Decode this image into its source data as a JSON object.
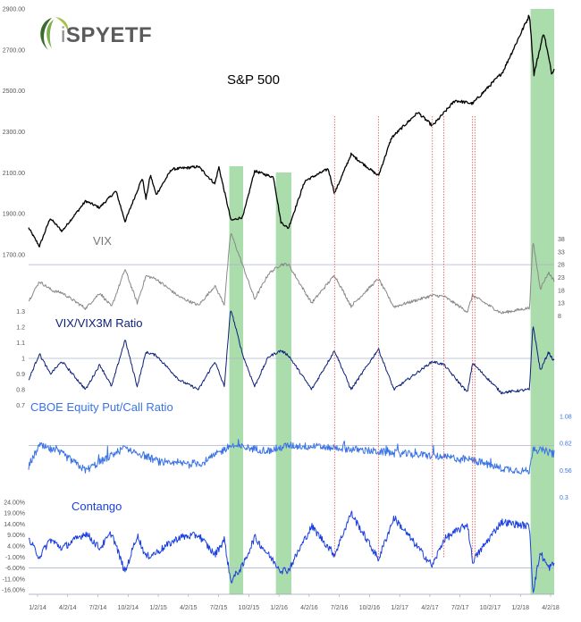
{
  "logo": {
    "prefix": "i",
    "name": "SPYETF"
  },
  "chart_data": {
    "type": "line",
    "x_labels": [
      "1/2/14",
      "4/2/14",
      "7/2/14",
      "10/2/14",
      "1/2/15",
      "4/2/15",
      "7/2/15",
      "10/2/15",
      "1/2/16",
      "4/2/16",
      "7/2/16",
      "10/2/16",
      "1/2/17",
      "4/2/17",
      "7/2/17",
      "10/2/17",
      "1/2/18",
      "4/2/18"
    ],
    "x_range": [
      "2014-01-02",
      "2018-04-09"
    ],
    "correction_periods": [
      {
        "start": "2015-08-20",
        "end": "2015-09-30"
      },
      {
        "start": "2016-01-05",
        "end": "2016-02-20"
      },
      {
        "start": "2018-01-29",
        "end": "2018-04-09"
      }
    ],
    "spike_dates": [
      "2016-06-27",
      "2016-11-04",
      "2017-04-13",
      "2017-05-17",
      "2017-08-10",
      "2017-08-17"
    ],
    "panels": [
      {
        "title": "S&P 500",
        "color": "#000000",
        "ylim": [
          1700,
          2900
        ],
        "ytick_values": [
          1700,
          1900,
          2100,
          2300,
          2500,
          2700,
          2900
        ],
        "ytick_labels": [
          "1700.00",
          "1900.00",
          "2100.00",
          "2300.00",
          "2500.00",
          "2700.00",
          "2900.00"
        ],
        "tick_side": "left",
        "reference_line": null,
        "anchors": [
          [
            "2014-01-02",
            1831
          ],
          [
            "2014-02-03",
            1741
          ],
          [
            "2014-03-07",
            1878
          ],
          [
            "2014-04-11",
            1815
          ],
          [
            "2014-06-20",
            1962
          ],
          [
            "2014-07-31",
            1930
          ],
          [
            "2014-09-18",
            2011
          ],
          [
            "2014-10-15",
            1862
          ],
          [
            "2014-12-05",
            2075
          ],
          [
            "2014-12-16",
            1972
          ],
          [
            "2014-12-29",
            2090
          ],
          [
            "2015-01-15",
            1993
          ],
          [
            "2015-03-02",
            2117
          ],
          [
            "2015-05-21",
            2130
          ],
          [
            "2015-07-08",
            2046
          ],
          [
            "2015-07-20",
            2128
          ],
          [
            "2015-08-25",
            1867
          ],
          [
            "2015-09-29",
            1884
          ],
          [
            "2015-11-03",
            2109
          ],
          [
            "2015-12-29",
            2078
          ],
          [
            "2016-01-20",
            1859
          ],
          [
            "2016-02-11",
            1829
          ],
          [
            "2016-03-31",
            2060
          ],
          [
            "2016-06-08",
            2119
          ],
          [
            "2016-06-27",
            2000
          ],
          [
            "2016-08-15",
            2190
          ],
          [
            "2016-11-04",
            2085
          ],
          [
            "2016-12-13",
            2271
          ],
          [
            "2017-03-01",
            2395
          ],
          [
            "2017-04-13",
            2329
          ],
          [
            "2017-06-19",
            2453
          ],
          [
            "2017-08-10",
            2438
          ],
          [
            "2017-11-07",
            2591
          ],
          [
            "2018-01-26",
            2872
          ],
          [
            "2018-02-08",
            2581
          ],
          [
            "2018-03-09",
            2786
          ],
          [
            "2018-04-02",
            2581
          ],
          [
            "2018-04-09",
            2613
          ]
        ]
      },
      {
        "title": "VIX",
        "color": "#888888",
        "ylim": [
          5,
          42
        ],
        "ytick_values": [
          8,
          13,
          18,
          23,
          28,
          33,
          38
        ],
        "ytick_labels": [
          "8",
          "13",
          "18",
          "23",
          "28",
          "33",
          "38"
        ],
        "tick_side": "right",
        "reference_line": 28,
        "anchors": [
          [
            "2014-01-02",
            13.8
          ],
          [
            "2014-02-03",
            21.4
          ],
          [
            "2014-03-14",
            17.8
          ],
          [
            "2014-04-11",
            17.0
          ],
          [
            "2014-06-20",
            10.9
          ],
          [
            "2014-08-01",
            17.0
          ],
          [
            "2014-09-05",
            11.5
          ],
          [
            "2014-10-15",
            26.2
          ],
          [
            "2014-11-20",
            13.0
          ],
          [
            "2014-12-16",
            23.6
          ],
          [
            "2015-01-15",
            22.4
          ],
          [
            "2015-03-25",
            15.4
          ],
          [
            "2015-05-21",
            12.1
          ],
          [
            "2015-07-08",
            19.7
          ],
          [
            "2015-08-05",
            12.5
          ],
          [
            "2015-08-24",
            40.7
          ],
          [
            "2015-09-29",
            27.6
          ],
          [
            "2015-11-03",
            14.5
          ],
          [
            "2015-12-14",
            24.4
          ],
          [
            "2016-01-20",
            28.1
          ],
          [
            "2016-02-11",
            28.1
          ],
          [
            "2016-04-20",
            13.0
          ],
          [
            "2016-06-27",
            23.9
          ],
          [
            "2016-08-15",
            11.8
          ],
          [
            "2016-11-04",
            22.5
          ],
          [
            "2016-12-20",
            11.5
          ],
          [
            "2017-04-13",
            16.0
          ],
          [
            "2017-05-17",
            15.6
          ],
          [
            "2017-07-26",
            9.6
          ],
          [
            "2017-08-10",
            16.0
          ],
          [
            "2017-11-03",
            9.1
          ],
          [
            "2018-01-26",
            11.1
          ],
          [
            "2018-02-05",
            37.3
          ],
          [
            "2018-02-27",
            18.6
          ],
          [
            "2018-03-23",
            24.9
          ],
          [
            "2018-04-09",
            21.8
          ]
        ]
      },
      {
        "title": "VIX/VIX3M Ratio",
        "color": "#0b1f7a",
        "ylim": [
          0.65,
          1.35
        ],
        "ytick_values": [
          0.7,
          0.8,
          0.9,
          1.0,
          1.1,
          1.2,
          1.3
        ],
        "ytick_labels": [
          "0.7",
          "0.8",
          "0.9",
          "1",
          "1.1",
          "1.2",
          "1.3"
        ],
        "tick_side": "left",
        "reference_line": 1.0,
        "anchors": [
          [
            "2014-01-02",
            0.86
          ],
          [
            "2014-02-03",
            1.03
          ],
          [
            "2014-03-07",
            0.9
          ],
          [
            "2014-04-11",
            0.98
          ],
          [
            "2014-06-20",
            0.8
          ],
          [
            "2014-08-01",
            0.96
          ],
          [
            "2014-09-05",
            0.82
          ],
          [
            "2014-10-15",
            1.12
          ],
          [
            "2014-11-20",
            0.82
          ],
          [
            "2014-12-16",
            1.04
          ],
          [
            "2015-01-15",
            1.02
          ],
          [
            "2015-03-25",
            0.86
          ],
          [
            "2015-05-21",
            0.8
          ],
          [
            "2015-07-08",
            0.98
          ],
          [
            "2015-08-05",
            0.82
          ],
          [
            "2015-08-24",
            1.32
          ],
          [
            "2015-09-29",
            1.02
          ],
          [
            "2015-11-03",
            0.82
          ],
          [
            "2015-12-14",
            1.01
          ],
          [
            "2016-01-20",
            1.05
          ],
          [
            "2016-02-11",
            1.02
          ],
          [
            "2016-04-20",
            0.8
          ],
          [
            "2016-06-27",
            1.05
          ],
          [
            "2016-08-15",
            0.8
          ],
          [
            "2016-11-04",
            1.06
          ],
          [
            "2016-12-20",
            0.8
          ],
          [
            "2017-04-13",
            0.98
          ],
          [
            "2017-05-17",
            0.96
          ],
          [
            "2017-07-26",
            0.78
          ],
          [
            "2017-08-10",
            0.97
          ],
          [
            "2017-11-03",
            0.78
          ],
          [
            "2018-01-26",
            0.8
          ],
          [
            "2018-02-05",
            1.22
          ],
          [
            "2018-02-27",
            0.92
          ],
          [
            "2018-03-23",
            1.04
          ],
          [
            "2018-04-09",
            0.98
          ]
        ]
      },
      {
        "title": "CBOE Equity Put/Call Ratio",
        "color": "#3a73e6",
        "ylim": [
          0.2,
          1.15
        ],
        "ytick_values": [
          0.3,
          0.56,
          0.82,
          1.08
        ],
        "ytick_labels": [
          "0.3",
          "0.56",
          "0.82",
          "1.08"
        ],
        "tick_side": "right",
        "reference_line": 0.8,
        "anchors": [
          [
            "2014-01-02",
            0.6
          ],
          [
            "2014-02-03",
            0.8
          ],
          [
            "2014-04-11",
            0.72
          ],
          [
            "2014-06-20",
            0.56
          ],
          [
            "2014-10-15",
            0.78
          ],
          [
            "2015-02-10",
            0.62
          ],
          [
            "2015-06-01",
            0.63
          ],
          [
            "2015-08-24",
            0.8
          ],
          [
            "2015-12-14",
            0.75
          ],
          [
            "2016-02-11",
            0.8
          ],
          [
            "2016-06-27",
            0.78
          ],
          [
            "2016-11-04",
            0.74
          ],
          [
            "2017-04-13",
            0.7
          ],
          [
            "2017-08-10",
            0.66
          ],
          [
            "2017-11-03",
            0.58
          ],
          [
            "2018-01-26",
            0.55
          ],
          [
            "2018-02-05",
            0.78
          ],
          [
            "2018-04-09",
            0.72
          ]
        ]
      },
      {
        "title": "Contango",
        "color": "#1a3fe0",
        "ylim": [
          -0.18,
          0.26
        ],
        "ytick_values": [
          -0.16,
          -0.11,
          -0.06,
          -0.01,
          0.04,
          0.09,
          0.14,
          0.19,
          0.24
        ],
        "ytick_labels": [
          "-16.00%",
          "-11.00%",
          "-6.00%",
          "-1.00%",
          "4.00%",
          "9.00%",
          "14.00%",
          "19.00%",
          "24.00%"
        ],
        "tick_side": "left",
        "reference_line": -0.06,
        "anchors": [
          [
            "2014-01-02",
            0.07
          ],
          [
            "2014-02-03",
            -0.01
          ],
          [
            "2014-03-07",
            0.07
          ],
          [
            "2014-04-11",
            0.03
          ],
          [
            "2014-06-20",
            0.1
          ],
          [
            "2014-08-01",
            0.03
          ],
          [
            "2014-09-05",
            0.1
          ],
          [
            "2014-10-15",
            -0.08
          ],
          [
            "2014-11-20",
            0.09
          ],
          [
            "2014-12-16",
            -0.01
          ],
          [
            "2015-01-15",
            0.01
          ],
          [
            "2015-03-25",
            0.08
          ],
          [
            "2015-05-21",
            0.09
          ],
          [
            "2015-07-08",
            0.0
          ],
          [
            "2015-08-05",
            0.07
          ],
          [
            "2015-08-24",
            -0.12
          ],
          [
            "2015-09-29",
            -0.05
          ],
          [
            "2015-11-03",
            0.08
          ],
          [
            "2015-12-14",
            0.0
          ],
          [
            "2016-01-20",
            -0.07
          ],
          [
            "2016-02-11",
            -0.07
          ],
          [
            "2016-04-20",
            0.13
          ],
          [
            "2016-06-27",
            0.0
          ],
          [
            "2016-08-15",
            0.19
          ],
          [
            "2016-11-04",
            -0.02
          ],
          [
            "2016-12-20",
            0.17
          ],
          [
            "2017-04-13",
            -0.05
          ],
          [
            "2017-05-17",
            0.07
          ],
          [
            "2017-07-26",
            0.14
          ],
          [
            "2017-08-10",
            -0.03
          ],
          [
            "2017-11-03",
            0.15
          ],
          [
            "2018-01-26",
            0.13
          ],
          [
            "2018-02-05",
            -0.17
          ],
          [
            "2018-02-27",
            0.01
          ],
          [
            "2018-03-23",
            -0.06
          ],
          [
            "2018-04-09",
            -0.04
          ]
        ]
      }
    ]
  }
}
